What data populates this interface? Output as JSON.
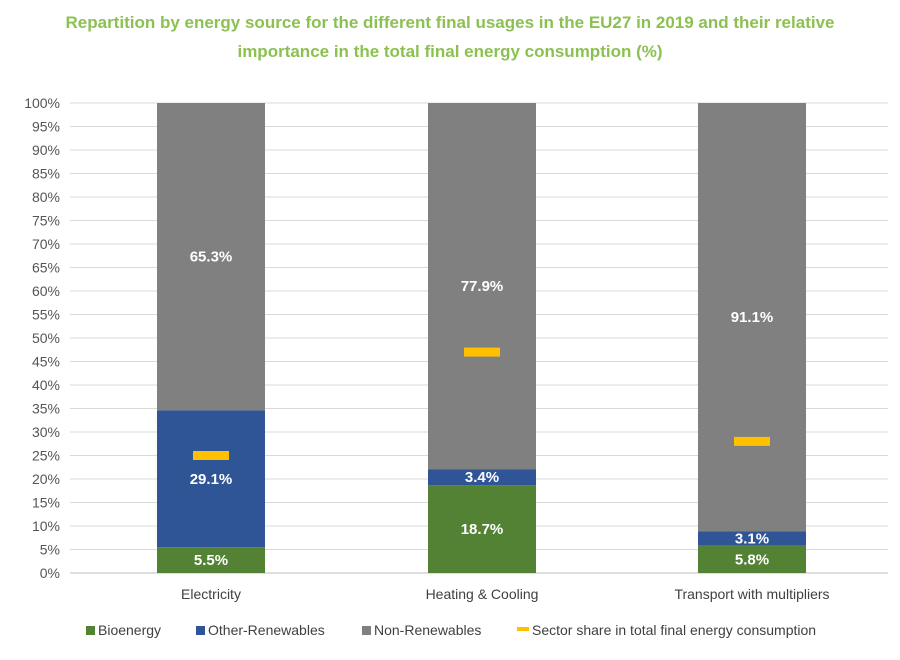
{
  "chart_data": {
    "type": "bar",
    "stacked": true,
    "title_lines": [
      "Repartition by energy source for the different final usages in the EU27 in 2019 and their relative",
      "importance in the total final energy consumption (%)"
    ],
    "categories": [
      "Electricity",
      "Heating & Cooling",
      "Transport with multipliers"
    ],
    "series": [
      {
        "name": "Bioenergy",
        "color": "#548235",
        "values": [
          5.5,
          18.7,
          5.8
        ],
        "labels": [
          "5.5%",
          "18.7%",
          "5.8%"
        ]
      },
      {
        "name": "Other-Renewables",
        "color": "#2f5597",
        "values": [
          29.1,
          3.4,
          3.1
        ],
        "labels": [
          "29.1%",
          "3.4%",
          "3.1%"
        ]
      },
      {
        "name": "Non-Renewables",
        "color": "#808080",
        "values": [
          65.3,
          77.9,
          91.1
        ],
        "labels": [
          "65.3%",
          "77.9%",
          "91.1%"
        ]
      }
    ],
    "markers": {
      "name": "Sector share in total final energy consumption",
      "color": "#ffc000",
      "values": [
        25,
        47,
        28
      ]
    },
    "ylim": [
      0,
      100
    ],
    "y_ticks": [
      "0%",
      "5%",
      "10%",
      "15%",
      "20%",
      "25%",
      "30%",
      "35%",
      "40%",
      "45%",
      "50%",
      "55%",
      "60%",
      "65%",
      "70%",
      "75%",
      "80%",
      "85%",
      "90%",
      "95%",
      "100%"
    ],
    "grid": true,
    "legend_position": "bottom"
  }
}
